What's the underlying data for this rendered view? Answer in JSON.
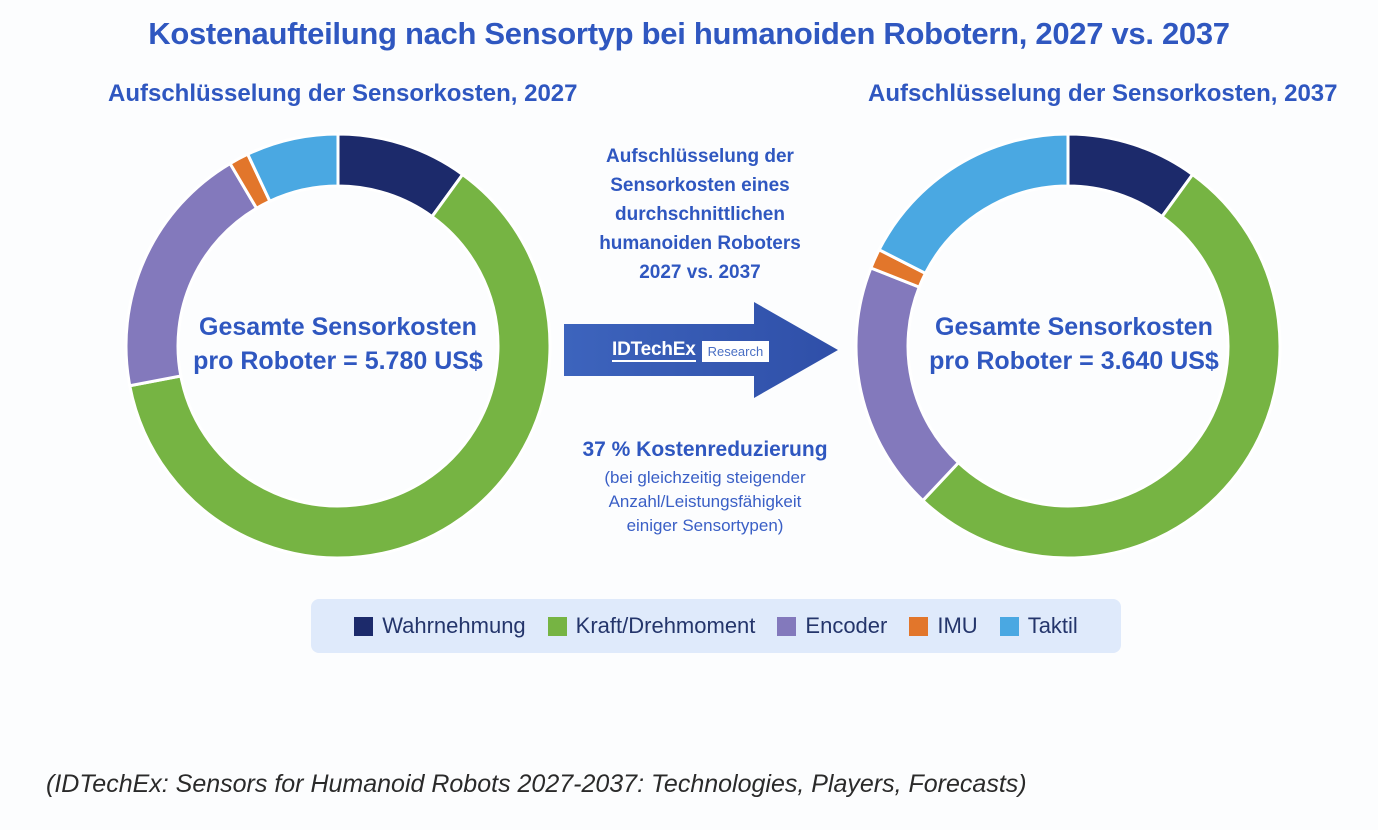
{
  "title": "Kostenaufteilung nach Sensortyp bei humanoiden Robotern, 2027 vs. 2037",
  "left_subtitle": "Aufschlüsselung der  Sensorkosten, 2027",
  "right_subtitle": "Aufschlüsselung der Sensorkosten, 2037",
  "left_center": [
    "Gesamte Sensorkosten",
    "pro Roboter = 5.780 US$"
  ],
  "right_center": [
    "Gesamte Sensorkosten",
    "pro Roboter = 3.640 US$"
  ],
  "middle_description": [
    "Aufschlüsselung der",
    "Sensorkosten eines",
    "durchschnittlichen",
    "humanoiden Roboters",
    "2027 vs. 2037"
  ],
  "brand": {
    "name": "IDTechEx",
    "tag": "Research"
  },
  "reduction": {
    "headline": "37 % Kostenreduzierung",
    "note": [
      "(bei gleichzeitig steigender",
      "Anzahl/Leistungsfähigkeit",
      "einiger Sensortypen)"
    ]
  },
  "source": "(IDTechEx: Sensors for Humanoid Robots 2027-2037: Technologies, Players, Forecasts)",
  "colors": {
    "Wahrnehmung": "#1c2a6b",
    "Kraft/Drehmoment": "#76b443",
    "Encoder": "#8379bc",
    "IMU": "#e2762b",
    "Taktil": "#4aa8e2"
  },
  "chart_data": [
    {
      "type": "pie",
      "title": "Aufschlüsselung der  Sensorkosten, 2027",
      "categories": [
        "Wahrnehmung",
        "Kraft/Drehmoment",
        "Encoder",
        "IMU",
        "Taktil"
      ],
      "values": [
        10,
        62,
        19.5,
        1.5,
        7
      ],
      "unit": "%",
      "legend": "bottom"
    },
    {
      "type": "pie",
      "title": "Aufschlüsselung der Sensorkosten, 2037",
      "categories": [
        "Wahrnehmung",
        "Kraft/Drehmoment",
        "Encoder",
        "IMU",
        "Taktil"
      ],
      "values": [
        10,
        52,
        19,
        1.5,
        17.5
      ],
      "unit": "%",
      "legend": "bottom"
    }
  ]
}
